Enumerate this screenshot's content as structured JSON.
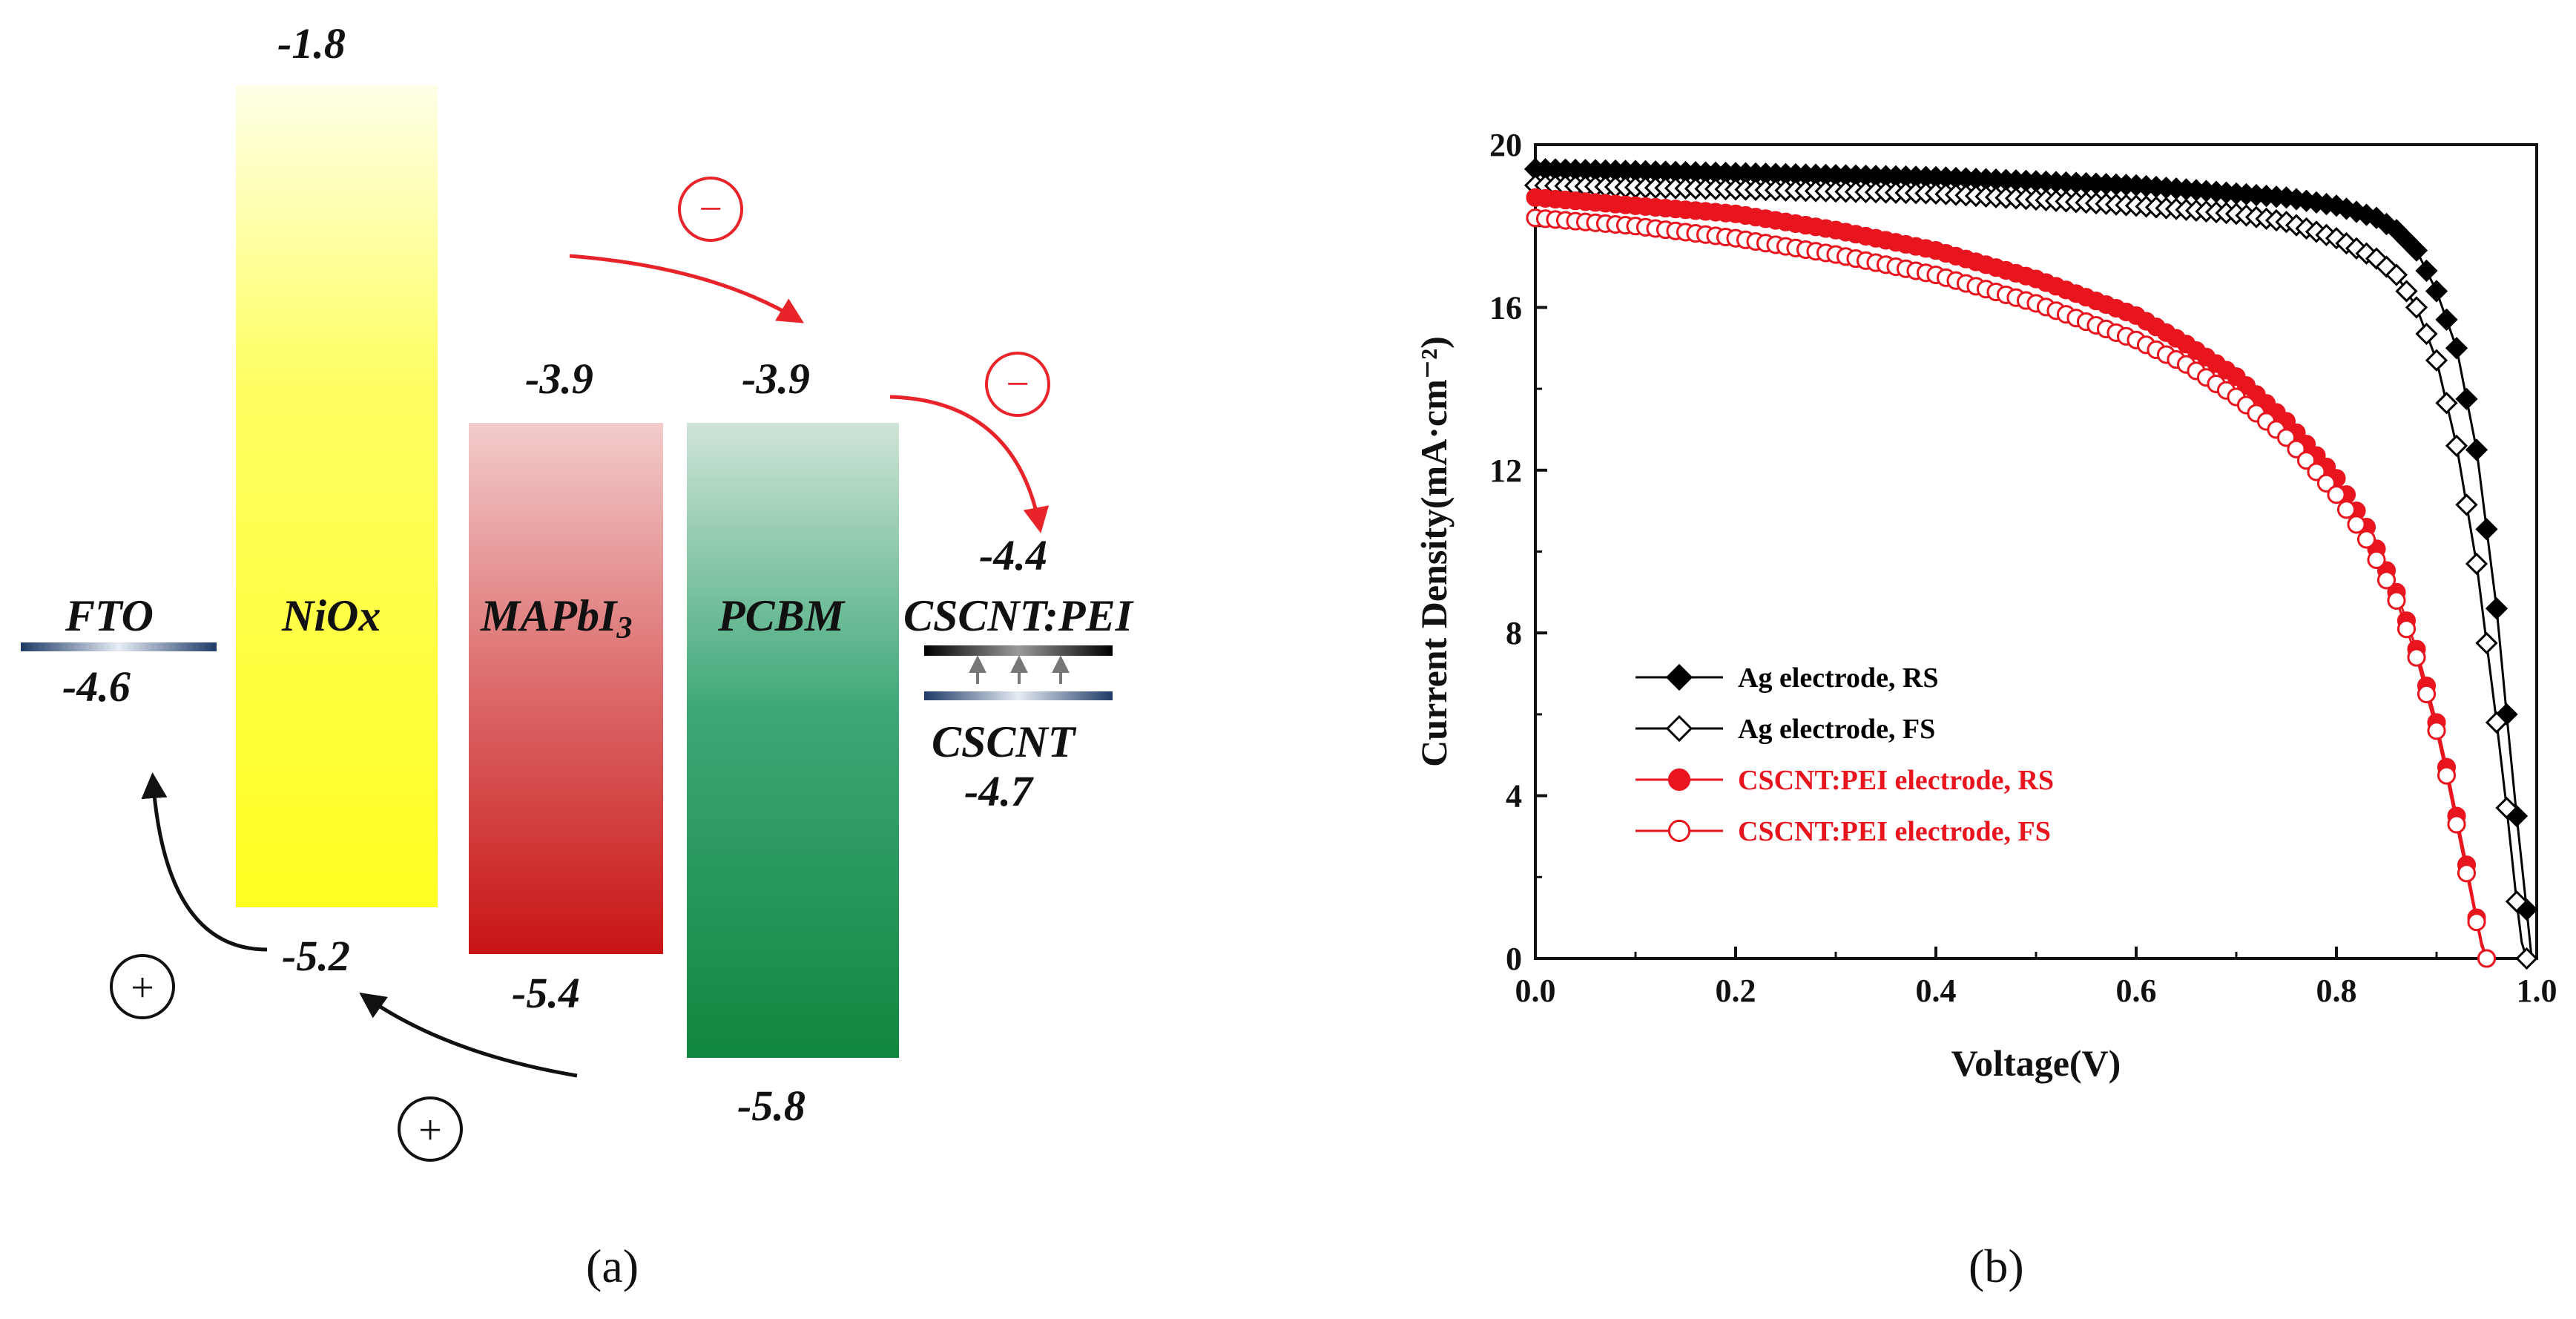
{
  "panel_a": {
    "caption": "(a)",
    "levels": [
      {
        "name": "FTO",
        "bottom_label": "-4.6",
        "fill": "#24406e"
      },
      {
        "name": "NiOx",
        "top_label": "-1.8",
        "bottom_label": "-5.2",
        "fill": "#ffff33"
      },
      {
        "name": "MAPbI",
        "subscript": "3",
        "top_label": "-3.9",
        "bottom_label": "-5.4",
        "fill": "#d32a22"
      },
      {
        "name": "PCBM",
        "top_label": "-3.9",
        "bottom_label": "-5.8",
        "fill": "#14884a"
      },
      {
        "name": "CSCNT:PEI",
        "top_label": "-4.4",
        "fill": "#000000"
      },
      {
        "name": "CSCNT",
        "bottom_label": "-4.7",
        "fill": "#1e3a66"
      }
    ],
    "electron_symbol": "−",
    "hole_symbol": "+",
    "electron_color": "#e8242a",
    "hole_color": "#111111"
  },
  "panel_b": {
    "caption": "(b)"
  },
  "chart_data": {
    "type": "scatter",
    "title": "",
    "xlabel": "Voltage(V)",
    "ylabel": "Current Density(mA·cm⁻²)",
    "xlim": [
      0,
      1.0
    ],
    "ylim": [
      0,
      20
    ],
    "xticks": [
      "0.0",
      "0.2",
      "0.4",
      "0.6",
      "0.8",
      "1.0"
    ],
    "yticks": [
      "0",
      "4",
      "8",
      "12",
      "16",
      "20"
    ],
    "legend_position": "lower-left",
    "series": [
      {
        "name": "Ag electrode, RS",
        "color": "#000000",
        "marker": "filled-diamond",
        "x": [
          0.0,
          0.1,
          0.2,
          0.3,
          0.4,
          0.5,
          0.6,
          0.7,
          0.75,
          0.8,
          0.84,
          0.86,
          0.88,
          0.9,
          0.92,
          0.94,
          0.96,
          0.97,
          0.98,
          0.99,
          0.995
        ],
        "y": [
          19.4,
          19.35,
          19.3,
          19.25,
          19.2,
          19.1,
          19.0,
          18.8,
          18.7,
          18.5,
          18.2,
          17.9,
          17.4,
          16.4,
          15.0,
          12.5,
          8.6,
          6.0,
          3.5,
          1.2,
          0.0
        ]
      },
      {
        "name": "Ag electrode, FS",
        "color": "#000000",
        "marker": "open-diamond",
        "x": [
          0.0,
          0.1,
          0.2,
          0.3,
          0.4,
          0.5,
          0.6,
          0.7,
          0.75,
          0.8,
          0.84,
          0.86,
          0.88,
          0.9,
          0.92,
          0.94,
          0.96,
          0.97,
          0.98,
          0.985,
          0.99
        ],
        "y": [
          19.0,
          18.95,
          18.9,
          18.85,
          18.8,
          18.65,
          18.5,
          18.3,
          18.1,
          17.7,
          17.2,
          16.8,
          16.0,
          14.7,
          12.6,
          9.7,
          5.8,
          3.7,
          1.4,
          0.4,
          0.0
        ]
      },
      {
        "name": "CSCNT:PEI electrode, RS",
        "color": "#e8141e",
        "marker": "filled-circle",
        "x": [
          0.0,
          0.1,
          0.2,
          0.3,
          0.4,
          0.5,
          0.6,
          0.65,
          0.7,
          0.75,
          0.8,
          0.83,
          0.86,
          0.88,
          0.9,
          0.91,
          0.92,
          0.93,
          0.94,
          0.945,
          0.95
        ],
        "y": [
          18.7,
          18.5,
          18.3,
          17.9,
          17.4,
          16.7,
          15.8,
          15.1,
          14.3,
          13.2,
          11.8,
          10.6,
          9.0,
          7.6,
          5.8,
          4.7,
          3.5,
          2.3,
          1.0,
          0.4,
          0.0
        ]
      },
      {
        "name": "CSCNT:PEI electrode, FS",
        "color": "#e8141e",
        "marker": "open-circle",
        "x": [
          0.0,
          0.1,
          0.2,
          0.3,
          0.4,
          0.5,
          0.6,
          0.65,
          0.7,
          0.75,
          0.8,
          0.83,
          0.86,
          0.88,
          0.9,
          0.91,
          0.92,
          0.93,
          0.94,
          0.945,
          0.95
        ],
        "y": [
          18.2,
          18.0,
          17.7,
          17.3,
          16.8,
          16.1,
          15.2,
          14.6,
          13.8,
          12.8,
          11.4,
          10.3,
          8.8,
          7.4,
          5.6,
          4.5,
          3.3,
          2.1,
          0.9,
          0.3,
          0.0
        ]
      }
    ]
  }
}
